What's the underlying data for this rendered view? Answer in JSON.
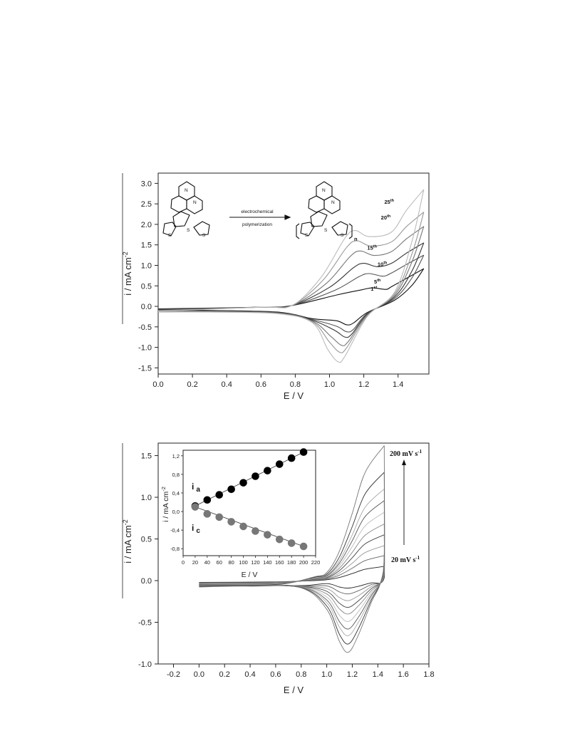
{
  "chart_data": [
    {
      "type": "line",
      "title": "",
      "xlabel": "E / V",
      "ylabel": "i / mA cm",
      "ylabel_sup": "-2",
      "xlim": [
        0.0,
        1.58
      ],
      "ylim": [
        -1.65,
        3.25
      ],
      "xticks": [
        "0.0",
        "0.2",
        "0.4",
        "0.6",
        "0.8",
        "1.0",
        "1.2",
        "1.4"
      ],
      "yticks": [
        "-1.5",
        "-1.0",
        "-0.5",
        "0.0",
        "0.5",
        "1.0",
        "1.5",
        "2.0",
        "2.5",
        "3.0"
      ],
      "grid": false,
      "series": [
        {
          "name": "1st",
          "anodic_peak": [
            1.25,
            0.45
          ],
          "upper_limit": [
            1.55,
            0.92
          ],
          "cathodic_peak": [
            1.1,
            -0.45
          ]
        },
        {
          "name": "5th",
          "anodic_peak": [
            1.23,
            0.8
          ],
          "upper_limit": [
            1.55,
            1.25
          ],
          "cathodic_peak": [
            1.1,
            -0.62
          ]
        },
        {
          "name": "10th",
          "anodic_peak": [
            1.2,
            1.05
          ],
          "upper_limit": [
            1.55,
            1.55
          ],
          "cathodic_peak": [
            1.09,
            -0.75
          ]
        },
        {
          "name": "15th",
          "anodic_peak": [
            1.18,
            1.35
          ],
          "upper_limit": [
            1.55,
            1.95
          ],
          "cathodic_peak": [
            1.07,
            -0.95
          ]
        },
        {
          "name": "20th",
          "anodic_peak": [
            1.16,
            1.6
          ],
          "upper_limit": [
            1.55,
            2.3
          ],
          "cathodic_peak": [
            1.06,
            -1.12
          ]
        },
        {
          "name": "25th",
          "anodic_peak": [
            1.15,
            1.85
          ],
          "upper_limit": [
            1.55,
            2.85
          ],
          "cathodic_peak": [
            1.05,
            -1.35
          ]
        }
      ],
      "annotations": {
        "reaction_top": "electrochemical",
        "reaction_bottom": "polymerization",
        "subscript_n": "n"
      }
    },
    {
      "type": "line",
      "title": "",
      "xlabel": "E / V",
      "ylabel": "i / mA cm",
      "ylabel_sup": "-2",
      "xlim": [
        -0.32,
        1.8
      ],
      "ylim": [
        -1.0,
        1.65
      ],
      "xticks": [
        "-0.2",
        "0.0",
        "0.2",
        "0.4",
        "0.6",
        "0.8",
        "1.0",
        "1.2",
        "1.4",
        "1.6",
        "1.8"
      ],
      "yticks": [
        "-1.0",
        "-0.5",
        "0.0",
        "0.5",
        "1.0",
        "1.5"
      ],
      "grid": false,
      "scan_rates": [
        20,
        40,
        60,
        80,
        100,
        120,
        140,
        160,
        180,
        200
      ],
      "scan_rate_unit": "mV s",
      "top_label": "200 mV s",
      "bottom_label": "20 mV s",
      "label_sup": "-1",
      "anodic_max": [
        0.17,
        0.3,
        0.42,
        0.55,
        0.68,
        0.82,
        0.96,
        1.1,
        1.3,
        1.62
      ],
      "cathodic_min": [
        -0.09,
        -0.16,
        -0.24,
        -0.32,
        -0.4,
        -0.49,
        -0.58,
        -0.66,
        -0.76,
        -0.86
      ],
      "inset": {
        "type": "scatter",
        "xlabel": "E / V",
        "ylabel": "i / mA cm",
        "ylabel_sup": "-2",
        "xlim": [
          0,
          220
        ],
        "ylim": [
          -0.95,
          1.32
        ],
        "xticks": [
          "0",
          "20",
          "40",
          "60",
          "80",
          "100",
          "120",
          "140",
          "160",
          "180",
          "200",
          "220"
        ],
        "yticks": [
          "-0,8",
          "-0,4",
          "0,0",
          "0,4",
          "0,8",
          "1,2"
        ],
        "series": [
          {
            "name": "i",
            "sub": "a",
            "color": "#000000",
            "x": [
              20,
              40,
              60,
              80,
              100,
              120,
              140,
              160,
              180,
              200
            ],
            "y": [
              0.12,
              0.25,
              0.36,
              0.48,
              0.62,
              0.76,
              0.88,
              1.02,
              1.15,
              1.28
            ]
          },
          {
            "name": "i",
            "sub": "c",
            "color": "#777777",
            "x": [
              20,
              40,
              60,
              80,
              100,
              120,
              140,
              160,
              180,
              200
            ],
            "y": [
              0.1,
              -0.05,
              -0.12,
              -0.22,
              -0.32,
              -0.42,
              -0.5,
              -0.6,
              -0.68,
              -0.75
            ]
          }
        ]
      }
    }
  ]
}
